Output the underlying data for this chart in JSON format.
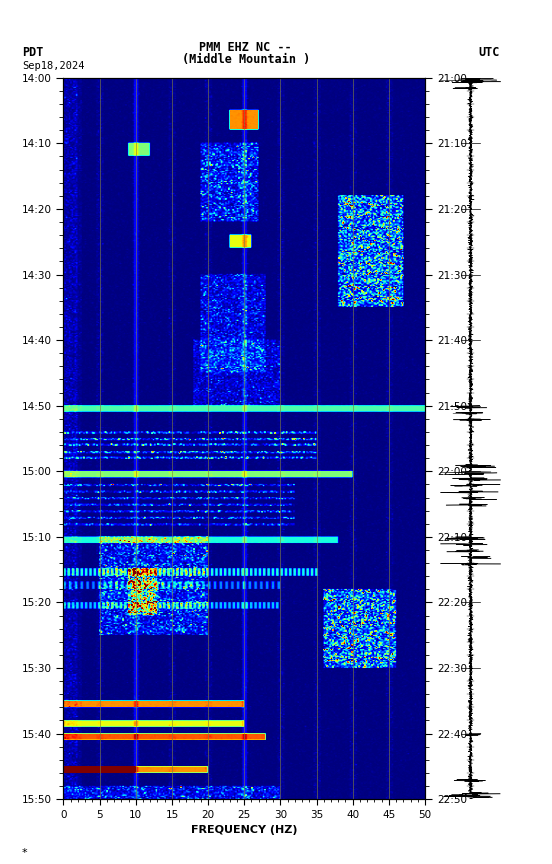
{
  "title_line1": "PMM EHZ NC --",
  "title_line2": "(Middle Mountain )",
  "label_left": "PDT",
  "label_date": "Sep18,2024",
  "label_right": "UTC",
  "freq_min": 0,
  "freq_max": 50,
  "xlabel": "FREQUENCY (HZ)",
  "freq_ticks": [
    0,
    5,
    10,
    15,
    20,
    25,
    30,
    35,
    40,
    45,
    50
  ],
  "time_ticks_pdt": [
    "14:00",
    "14:10",
    "14:20",
    "14:30",
    "14:40",
    "14:50",
    "15:00",
    "15:10",
    "15:20",
    "15:30",
    "15:40",
    "15:50"
  ],
  "time_ticks_utc": [
    "21:00",
    "21:10",
    "21:20",
    "21:30",
    "21:40",
    "21:50",
    "22:00",
    "22:10",
    "22:20",
    "22:30",
    "22:40",
    "22:50"
  ],
  "colormap": "jet",
  "fig_width": 5.52,
  "fig_height": 8.64,
  "dpi": 100,
  "note": "*",
  "total_minutes": 110,
  "vmin": 0,
  "vmax": 8,
  "grid_color": "#808040",
  "grid_alpha": 0.7,
  "grid_lw": 0.6
}
